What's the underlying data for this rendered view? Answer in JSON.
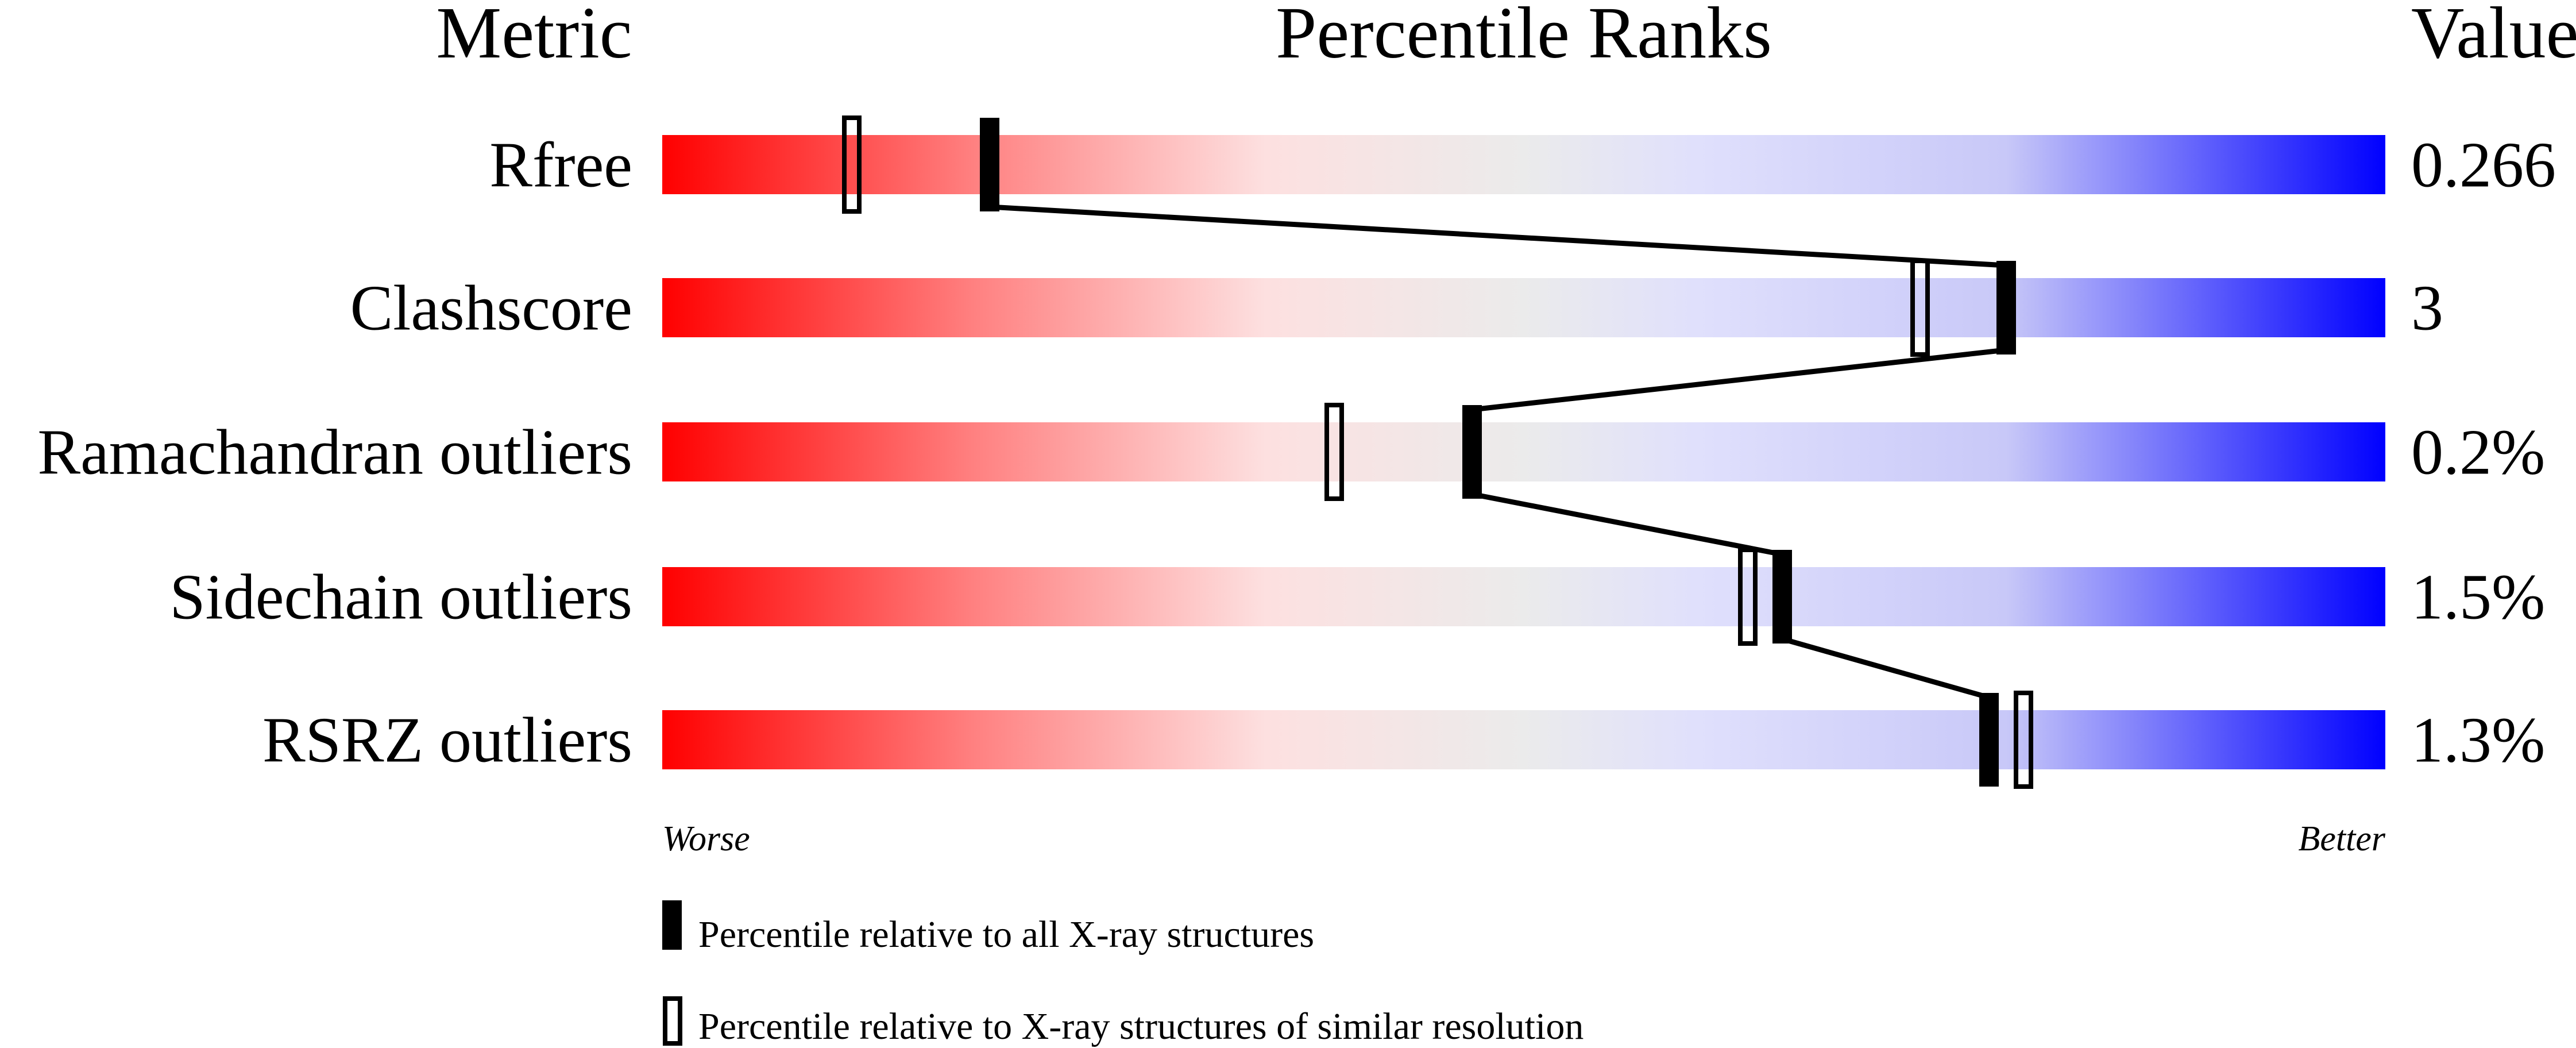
{
  "chart_data": {
    "type": "percentile-slider",
    "headers": {
      "metric": "Metric",
      "ranks": "Percentile Ranks",
      "value": "Value"
    },
    "xlim": [
      0,
      100
    ],
    "scale_labels": {
      "low": "Worse",
      "high": "Better"
    },
    "gradient_colors": [
      "#ff0000",
      "#ff8080",
      "#fde0e0",
      "#ebebeb",
      "#e0e0fc",
      "#c8c8f8",
      "#0000ff"
    ],
    "metrics": [
      {
        "name": "Rfree",
        "value": "0.266",
        "percentile_all": 19,
        "percentile_similar": 11
      },
      {
        "name": "Clashscore",
        "value": "3",
        "percentile_all": 78,
        "percentile_similar": 73
      },
      {
        "name": "Ramachandran outliers",
        "value": "0.2%",
        "percentile_all": 47,
        "percentile_similar": 39
      },
      {
        "name": "Sidechain outliers",
        "value": "1.5%",
        "percentile_all": 65,
        "percentile_similar": 63
      },
      {
        "name": "RSRZ outliers",
        "value": "1.3%",
        "percentile_all": 77,
        "percentile_similar": 79
      }
    ],
    "legend": [
      {
        "marker": "filled",
        "label": "Percentile relative to all X-ray structures"
      },
      {
        "marker": "open",
        "label": "Percentile relative to X-ray structures of similar resolution"
      }
    ]
  }
}
